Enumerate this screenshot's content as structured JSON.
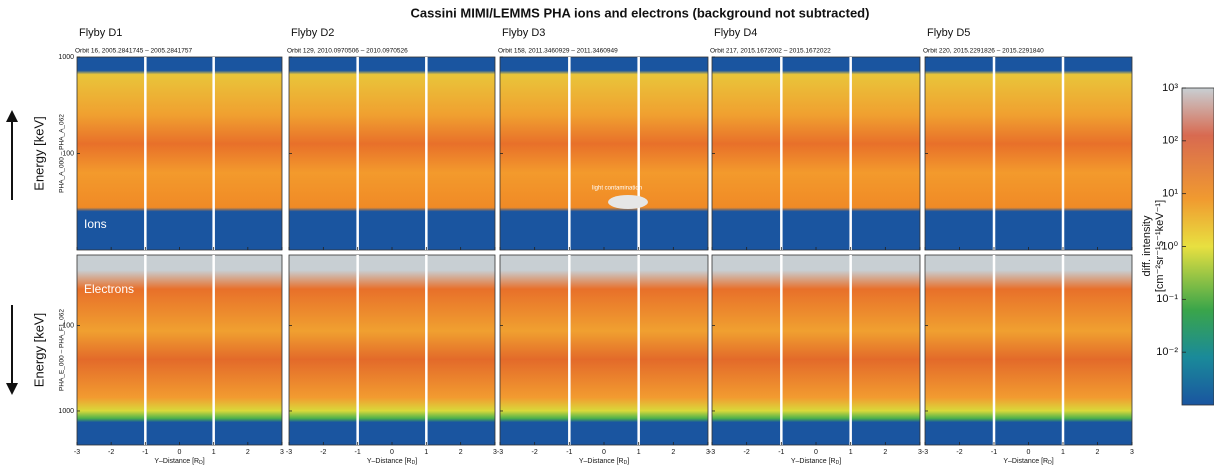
{
  "title": "Cassini MIMI/LEMMS PHA ions and electrons (background not subtracted)",
  "panels": [
    {
      "flyby": "Flyby D1",
      "orbit": "Orbit 16, 2005.2841745 – 2005.2841757"
    },
    {
      "flyby": "Flyby D2",
      "orbit": "Orbit 129, 2010.0970506 – 2010.0970526"
    },
    {
      "flyby": "Flyby D3",
      "orbit": "Orbit 158, 2011.3460929 – 2011.3460949"
    },
    {
      "flyby": "Flyby D4",
      "orbit": "Orbit 217, 2015.1672002 – 2015.1672022"
    },
    {
      "flyby": "Flyby D5",
      "orbit": "Orbit 220, 2015.2291826 – 2015.2291840"
    }
  ],
  "rows": [
    {
      "ylabel": "Energy [keV]",
      "channel": "PHA_A_000 – PHA_A_062",
      "label": "Ions",
      "log": true,
      "ylim": [
        10,
        1000
      ],
      "yticks": [
        1000,
        100
      ]
    },
    {
      "ylabel": "Energy [keV]",
      "channel": "PHA_E_000 – PHA_F1_062",
      "label": "Electrons",
      "log": true,
      "ylim": [
        15,
        2500
      ],
      "yticks": [
        100,
        1000
      ]
    }
  ],
  "annotation": "light contamination",
  "xlabel": {
    "text": "Y–Distance [R",
    "sub": "D",
    "end": "]"
  },
  "xlim": [
    -3,
    3
  ],
  "xticks": [
    -3,
    -2,
    -1,
    0,
    1,
    2,
    3
  ],
  "guides": [
    -1,
    1
  ],
  "colorbar": {
    "label": "diff. intensity",
    "units": "[cm⁻²sr⁻¹s⁻¹keV⁻¹]",
    "log": true,
    "zlim": [
      0.001,
      1000
    ],
    "ticks": [
      {
        "value": 1000,
        "label": "10³"
      },
      {
        "value": 100,
        "label": "10²"
      },
      {
        "value": 10,
        "label": "10¹"
      },
      {
        "value": 1,
        "label": "10⁰"
      },
      {
        "value": 0.1,
        "label": "10⁻¹"
      },
      {
        "value": 0.01,
        "label": "10⁻²"
      }
    ]
  }
}
